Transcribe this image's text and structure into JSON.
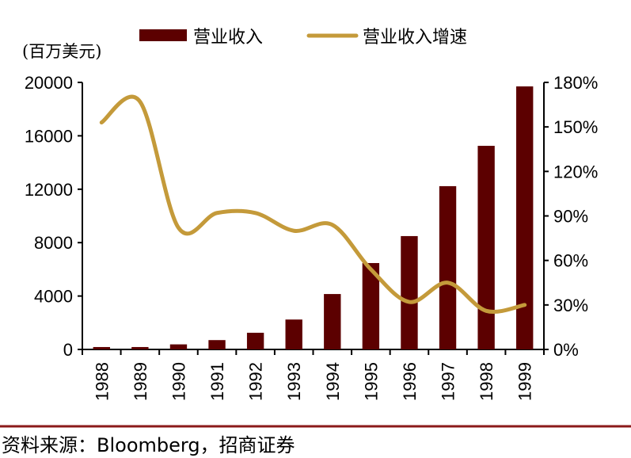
{
  "chart_data": {
    "type": "bar+line",
    "unit_label": "(百万美元)",
    "categories": [
      "1988",
      "1989",
      "1990",
      "1991",
      "1992",
      "1993",
      "1994",
      "1995",
      "1996",
      "1997",
      "1998",
      "1999"
    ],
    "series": [
      {
        "name": "营业收入",
        "type": "bar",
        "axis": "left",
        "color": "#5c0000",
        "values": [
          180,
          180,
          380,
          700,
          1250,
          2240,
          4150,
          6470,
          8490,
          12230,
          15250,
          19700
        ]
      },
      {
        "name": "营业收入增速",
        "type": "line",
        "axis": "right",
        "color": "#c49a3a",
        "values": [
          153,
          167,
          82,
          92,
          92,
          80,
          84,
          54,
          32,
          45,
          26,
          30
        ]
      }
    ],
    "left_axis": {
      "ylim": [
        0,
        20000
      ],
      "ticks": [
        "0",
        "4000",
        "8000",
        "12000",
        "16000",
        "20000"
      ]
    },
    "right_axis": {
      "ylim": [
        0,
        180
      ],
      "ticks": [
        "0%",
        "30%",
        "60%",
        "90%",
        "120%",
        "150%",
        "180%"
      ]
    },
    "grid": false,
    "legend": "top"
  },
  "source": "资料来源：Bloomberg，招商证券",
  "rule_color": "#8b1a1a"
}
